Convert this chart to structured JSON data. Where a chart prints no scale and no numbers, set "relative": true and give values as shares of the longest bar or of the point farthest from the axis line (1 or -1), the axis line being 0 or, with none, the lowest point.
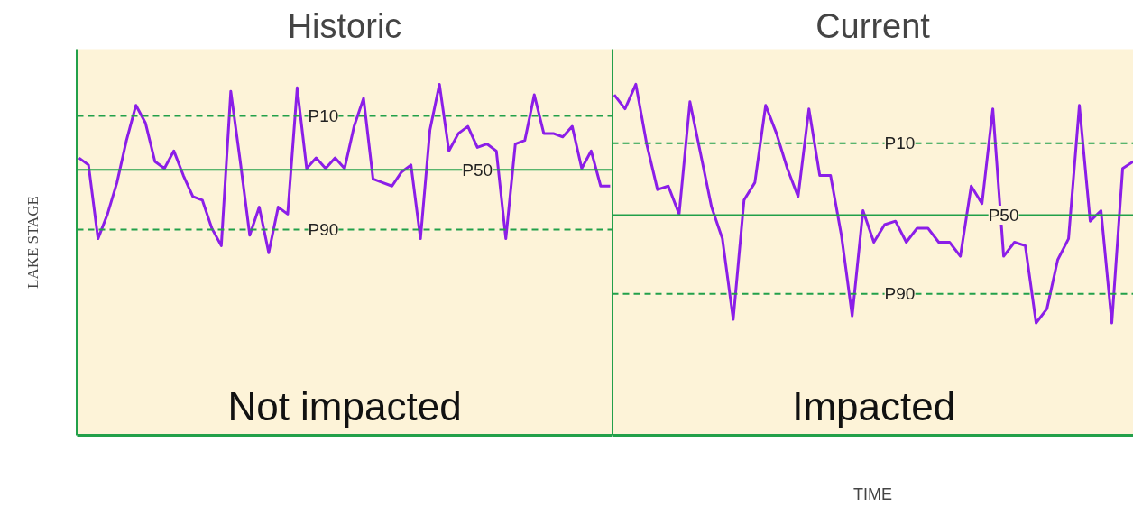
{
  "chart_data": [
    {
      "type": "line",
      "title": "Historic",
      "ylabel": "LAKE STAGE",
      "relative": true,
      "categories": [
        null,
        null,
        null,
        null,
        null,
        null,
        null,
        null,
        null,
        null,
        null,
        null,
        null,
        null,
        null,
        null,
        null,
        null,
        null,
        null,
        null,
        null,
        null,
        null,
        null,
        null,
        null,
        null,
        null,
        null,
        null,
        null,
        null,
        null,
        null,
        null,
        null,
        null,
        null,
        null,
        null,
        null,
        null,
        null,
        null,
        null,
        null,
        null,
        null,
        null,
        null,
        null,
        null,
        null,
        null,
        null,
        null
      ],
      "series": [
        {
          "color": "#8b1ee8",
          "values": [
            0.79,
            0.77,
            0.56,
            0.63,
            0.72,
            0.84,
            0.94,
            0.89,
            0.78,
            0.76,
            0.81,
            0.74,
            0.68,
            0.67,
            0.59,
            0.54,
            0.98,
            0.78,
            0.57,
            0.65,
            0.52,
            0.65,
            0.63,
            0.99,
            0.76,
            0.79,
            0.76,
            0.79,
            0.76,
            0.88,
            0.96,
            0.73,
            0.72,
            0.71,
            0.75,
            0.77,
            0.56,
            0.87,
            1,
            0.81,
            0.86,
            0.88,
            0.82,
            0.83,
            0.81,
            0.56,
            0.83,
            0.84,
            0.97,
            0.86,
            0.86,
            0.85,
            0.88,
            0.76,
            0.81,
            0.71,
            0.71
          ]
        }
      ],
      "ref_lines": [
        {
          "axis": "y",
          "value": 0.91,
          "label": "P10",
          "color": "#22a04a",
          "line_style": "dashed"
        },
        {
          "axis": "y",
          "value": 0.756,
          "label": "P50",
          "color": "#22a04a",
          "line_style": "solid"
        },
        {
          "axis": "y",
          "value": 0.586,
          "label": "P90",
          "color": "#22a04a",
          "line_style": "dashed"
        }
      ],
      "annotations": [
        "Not impacted"
      ]
    },
    {
      "type": "line",
      "title": "Current",
      "xlabel": "TIME",
      "relative": true,
      "categories": [
        null,
        null,
        null,
        null,
        null,
        null,
        null,
        null,
        null,
        null,
        null,
        null,
        null,
        null,
        null,
        null,
        null,
        null,
        null,
        null,
        null,
        null,
        null,
        null,
        null,
        null,
        null,
        null,
        null,
        null,
        null,
        null,
        null,
        null,
        null,
        null,
        null,
        null,
        null,
        null,
        null,
        null,
        null,
        null,
        null,
        null,
        null,
        null,
        null
      ],
      "series": [
        {
          "color": "#8b1ee8",
          "values": [
            0.97,
            0.93,
            1,
            0.83,
            0.7,
            0.71,
            0.63,
            0.95,
            0.8,
            0.65,
            0.56,
            0.33,
            0.67,
            0.72,
            0.94,
            0.86,
            0.76,
            0.68,
            0.93,
            0.74,
            0.74,
            0.57,
            0.34,
            0.64,
            0.55,
            0.6,
            0.61,
            0.55,
            0.59,
            0.59,
            0.55,
            0.55,
            0.51,
            0.71,
            0.66,
            0.93,
            0.51,
            0.55,
            0.54,
            0.32,
            0.36,
            0.5,
            0.56,
            0.94,
            0.61,
            0.64,
            0.32,
            0.76,
            0.78
          ]
        }
      ],
      "ref_lines": [
        {
          "axis": "y",
          "value": 0.832,
          "label": "P10",
          "color": "#22a04a",
          "line_style": "dashed"
        },
        {
          "axis": "y",
          "value": 0.627,
          "label": "P50",
          "color": "#22a04a",
          "line_style": "solid"
        },
        {
          "axis": "y",
          "value": 0.403,
          "label": "P90",
          "color": "#22a04a",
          "line_style": "dashed"
        }
      ],
      "annotations": [
        "Impacted"
      ]
    }
  ]
}
